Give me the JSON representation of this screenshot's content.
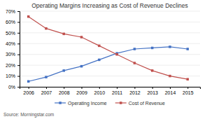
{
  "chart_data": {
    "type": "line",
    "title": "Operating Margins Increasing as Cost of Revenue Declines",
    "x": [
      2006,
      2007,
      2008,
      2009,
      2010,
      2011,
      2012,
      2013,
      2014,
      2015
    ],
    "series": [
      {
        "name": "Operating Income",
        "color": "#4472c4",
        "marker": "square",
        "values": [
          0.05,
          0.09,
          0.15,
          0.19,
          0.25,
          0.31,
          0.35,
          0.36,
          0.37,
          0.35
        ]
      },
      {
        "name": "Cost of Revenue",
        "color": "#c0504d",
        "marker": "square",
        "values": [
          0.65,
          0.54,
          0.49,
          0.46,
          0.38,
          0.3,
          0.22,
          0.15,
          0.1,
          0.07
        ]
      }
    ],
    "xlim": [
      2005.5,
      2015.7
    ],
    "xticks": [
      2006,
      2007,
      2008,
      2009,
      2010,
      2011,
      2012,
      2013,
      2014,
      2015
    ],
    "ylim": [
      0,
      0.7
    ],
    "yticks": [
      {
        "value": 0.0,
        "label": "0%"
      },
      {
        "value": 0.1,
        "label": "10%"
      },
      {
        "value": 0.2,
        "label": "20%"
      },
      {
        "value": 0.3,
        "label": "30%"
      },
      {
        "value": 0.4,
        "label": "40%"
      },
      {
        "value": 0.5,
        "label": "50%"
      },
      {
        "value": 0.6,
        "label": "60%"
      },
      {
        "value": 0.7,
        "label": "70%"
      }
    ],
    "grid": "y",
    "legend": "bottom",
    "annotations": [
      "Source: Morningstar.com"
    ]
  }
}
